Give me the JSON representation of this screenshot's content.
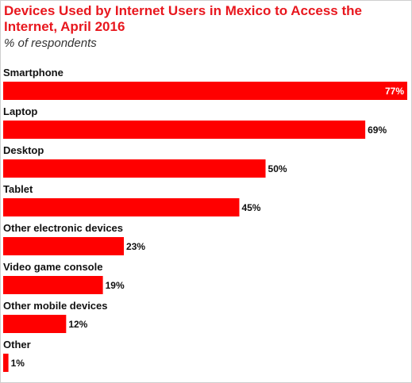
{
  "chart_data": {
    "type": "bar",
    "orientation": "horizontal",
    "title": "Devices Used by Internet Users in Mexico to Access the Internet, April 2016",
    "subtitle": "% of respondents",
    "categories": [
      "Smartphone",
      "Laptop",
      "Desktop",
      "Tablet",
      "Other electronic devices",
      "Video game console",
      "Other mobile devices",
      "Other"
    ],
    "values": [
      77,
      69,
      50,
      45,
      23,
      19,
      12,
      1
    ],
    "value_labels": [
      "77%",
      "69%",
      "50%",
      "45%",
      "23%",
      "19%",
      "12%",
      "1%"
    ],
    "xlim": [
      0,
      77
    ],
    "grid": false,
    "legend": "none"
  },
  "colors": {
    "bar": "#ff0000",
    "title": "#e8171e",
    "label": "#111111",
    "value_inside": "#ffffff",
    "value_outside": "#111111"
  }
}
